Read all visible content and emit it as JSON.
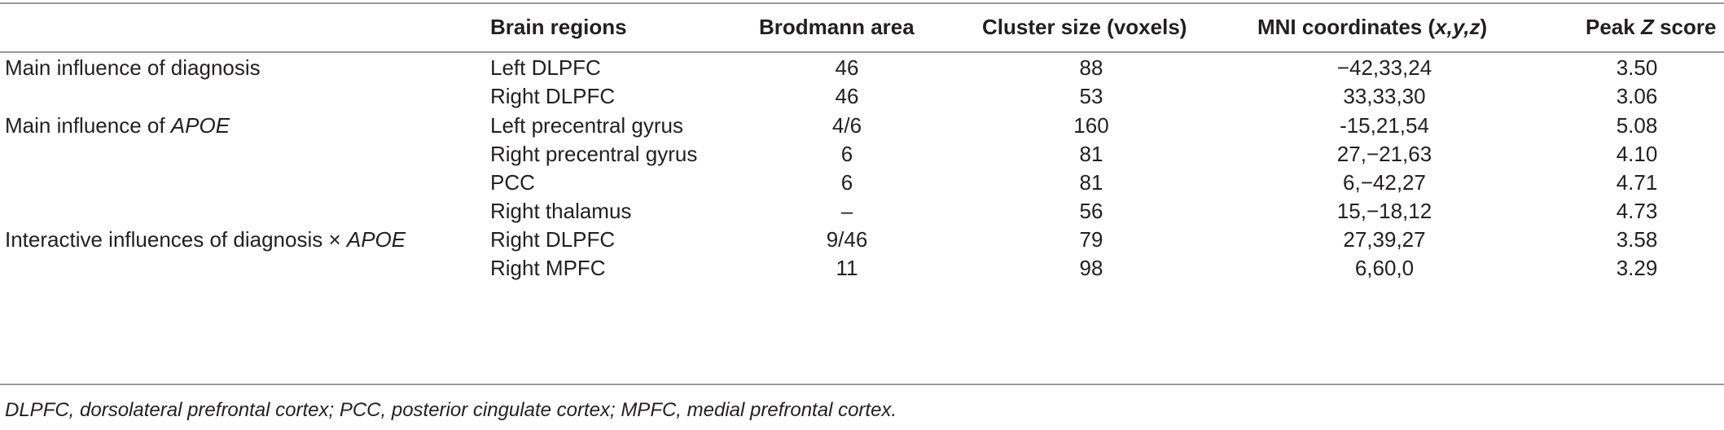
{
  "table": {
    "headers": {
      "group": "",
      "region": "Brain regions",
      "brodmann": "Brodmann area",
      "cluster": "Cluster size (voxels)",
      "mni_prefix": "MNI coordinates (",
      "mni_italic": "x,y,z",
      "mni_suffix": ")",
      "peak_prefix": "Peak ",
      "peak_italic": "Z",
      "peak_suffix": " score"
    },
    "groups": {
      "diagnosis": "Main influence of diagnosis",
      "apoe_prefix": "Main influence of ",
      "apoe_italic": "APOE",
      "interactive_prefix": "Interactive influences of diagnosis × ",
      "interactive_italic": "APOE"
    },
    "rows": [
      {
        "region": "Left DLPFC",
        "brodmann": "46",
        "cluster": "88",
        "mni": "−42,33,24",
        "peak_z": "3.50"
      },
      {
        "region": "Right DLPFC",
        "brodmann": "46",
        "cluster": "53",
        "mni": "33,33,30",
        "peak_z": "3.06"
      },
      {
        "region": "Left precentral gyrus",
        "brodmann": "4/6",
        "cluster": "160",
        "mni": "-15,21,54",
        "peak_z": "5.08"
      },
      {
        "region": "Right precentral gyrus",
        "brodmann": "6",
        "cluster": "81",
        "mni": "27,−21,63",
        "peak_z": "4.10"
      },
      {
        "region": "PCC",
        "brodmann": "6",
        "cluster": "81",
        "mni": "6,−42,27",
        "peak_z": "4.71"
      },
      {
        "region": "Right thalamus",
        "brodmann": "–",
        "cluster": "56",
        "mni": "15,−18,12",
        "peak_z": "4.73"
      },
      {
        "region": "Right DLPFC",
        "brodmann": "9/46",
        "cluster": "79",
        "mni": "27,39,27",
        "peak_z": "3.58"
      },
      {
        "region": "Right MPFC",
        "brodmann": "11",
        "cluster": "98",
        "mni": "6,60,0",
        "peak_z": "3.29"
      }
    ]
  },
  "footnote": "DLPFC, dorsolateral prefrontal cortex; PCC, posterior cingulate cortex; MPFC, medial prefrontal cortex."
}
